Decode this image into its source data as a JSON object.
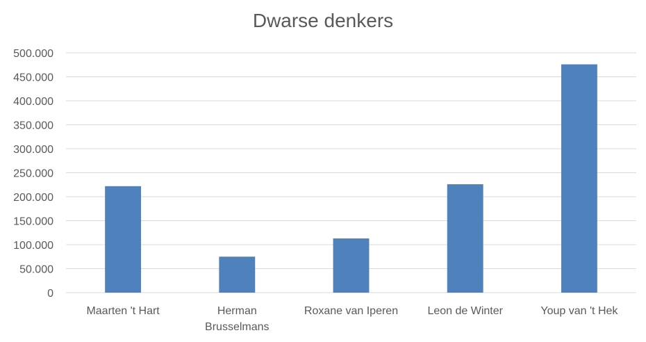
{
  "chart_data": {
    "type": "bar",
    "title": "Dwarse denkers",
    "xlabel": "",
    "ylabel": "",
    "categories": [
      "Maarten 't Hart",
      "Herman Brusselmans",
      "Roxane van Iperen",
      "Leon de Winter",
      "Youp van 't Hek"
    ],
    "category_lines": [
      [
        "Maarten 't Hart"
      ],
      [
        "Herman",
        "Brusselmans"
      ],
      [
        "Roxane van Iperen"
      ],
      [
        "Leon de Winter"
      ],
      [
        "Youp van 't Hek"
      ]
    ],
    "values": [
      222000,
      75000,
      113000,
      226000,
      476000
    ],
    "ylim": [
      0,
      500000
    ],
    "yticks": [
      0,
      50000,
      100000,
      150000,
      200000,
      250000,
      300000,
      350000,
      400000,
      450000,
      500000
    ],
    "ytick_labels": [
      "0",
      "50.000",
      "100.000",
      "150.000",
      "200.000",
      "250.000",
      "300.000",
      "350.000",
      "400.000",
      "450.000",
      "500.000"
    ],
    "grid": true,
    "legend": "none",
    "bar_color": "#4f81bd",
    "grid_color": "#d9d9d9",
    "text_color": "#595959"
  }
}
